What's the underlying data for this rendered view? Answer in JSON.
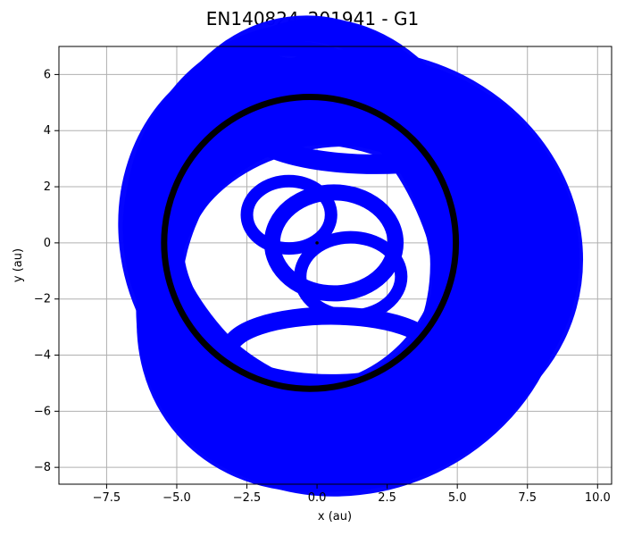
{
  "chart_data": {
    "type": "line",
    "title": "EN140824_201941 - G1",
    "xlabel": "x (au)",
    "ylabel": "y (au)",
    "xlim": [
      -9.2,
      10.5
    ],
    "ylim": [
      -8.6,
      7.0
    ],
    "xticks": [
      -7.5,
      -5.0,
      -2.5,
      0.0,
      2.5,
      5.0,
      7.5,
      10.0
    ],
    "xtick_labels": [
      "−7.5",
      "−5.0",
      "−2.5",
      "0.0",
      "2.5",
      "5.0",
      "7.5",
      "10.0"
    ],
    "yticks": [
      -8,
      -6,
      -4,
      -2,
      0,
      2,
      4,
      6
    ],
    "ytick_labels": [
      "−8",
      "−6",
      "−4",
      "−2",
      "0",
      "2",
      "4",
      "6"
    ],
    "grid": true,
    "series": [
      {
        "color": "#0000ff",
        "description_of_coverage": "",
        "orbits": {
          "count": 70,
          "base_center": [
            0.6,
            -0.8
          ],
          "base_radii": [
            6.6,
            5.7
          ]
        }
      },
      {
        "color": "#000000",
        "circle": {
          "center": [
            -0.25,
            0.0
          ],
          "radius_x": 5.2,
          "radius_y": 5.2
        }
      },
      {
        "color": "#000000",
        "point": [
          0.0,
          0.0
        ]
      }
    ],
    "colors": {
      "orbit": "#0000ff",
      "ring": "#000000",
      "grid": "#b0b0b0",
      "axes": "#000000"
    }
  }
}
